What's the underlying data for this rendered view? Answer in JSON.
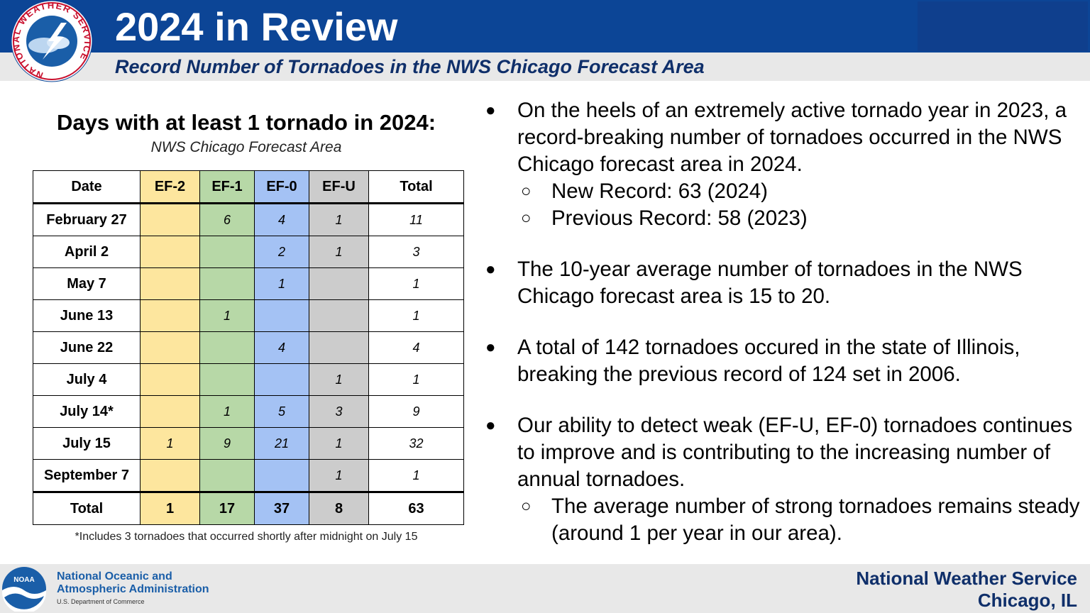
{
  "header": {
    "title": "2024 in Review",
    "subtitle": "Record Number of Tornadoes in the NWS Chicago Forecast Area",
    "logo_ring_text": "NATIONAL WEATHER SERVICE"
  },
  "table_section": {
    "heading": "Days with at least 1 tornado in 2024:",
    "subheading": "NWS Chicago Forecast Area",
    "columns": [
      "Date",
      "EF-2",
      "EF-1",
      "EF-0",
      "EF-U",
      "Total"
    ],
    "rows": [
      {
        "date": "February 27",
        "ef2": "",
        "ef1": "6",
        "ef0": "4",
        "efu": "1",
        "total": "11"
      },
      {
        "date": "April 2",
        "ef2": "",
        "ef1": "",
        "ef0": "2",
        "efu": "1",
        "total": "3"
      },
      {
        "date": "May 7",
        "ef2": "",
        "ef1": "",
        "ef0": "1",
        "efu": "",
        "total": "1"
      },
      {
        "date": "June 13",
        "ef2": "",
        "ef1": "1",
        "ef0": "",
        "efu": "",
        "total": "1"
      },
      {
        "date": "June 22",
        "ef2": "",
        "ef1": "",
        "ef0": "4",
        "efu": "",
        "total": "4"
      },
      {
        "date": "July 4",
        "ef2": "",
        "ef1": "",
        "ef0": "",
        "efu": "1",
        "total": "1"
      },
      {
        "date": "July 14*",
        "ef2": "",
        "ef1": "1",
        "ef0": "5",
        "efu": "3",
        "total": "9"
      },
      {
        "date": "July 15",
        "ef2": "1",
        "ef1": "9",
        "ef0": "21",
        "efu": "1",
        "total": "32"
      },
      {
        "date": "September 7",
        "ef2": "",
        "ef1": "",
        "ef0": "",
        "efu": "1",
        "total": "1"
      }
    ],
    "totals": {
      "label": "Total",
      "ef2": "1",
      "ef1": "17",
      "ef0": "37",
      "efu": "8",
      "total": "63"
    },
    "footnote": "*Includes 3 tornadoes that occurred shortly after midnight on July 15"
  },
  "bullets": {
    "b1": "On the heels of an extremely active tornado year in 2023, a record-breaking number of tornadoes occurred in the NWS Chicago forecast area in 2024.",
    "b1_sub1": "New Record: 63 (2024)",
    "b1_sub2": "Previous Record: 58 (2023)",
    "b2": "The 10-year average number of tornadoes in the NWS Chicago forecast area is 15 to 20.",
    "b3": "A total of 142 tornadoes occured in the state of Illinois, breaking the previous record of 124 set in 2006.",
    "b4": "Our ability to detect weak (EF-U, EF-0) tornadoes continues to improve and is contributing to the increasing number of annual tornadoes.",
    "b4_sub1": "The average number of strong tornadoes remains steady (around 1 per year in our area)."
  },
  "footer": {
    "noaa_badge": "NOAA",
    "noaa_line1": "National Oceanic and",
    "noaa_line2": "Atmospheric Administration",
    "noaa_dept": "U.S. Department of Commerce",
    "nws_line1": "National Weather Service",
    "nws_line2": "Chicago, IL"
  },
  "markers": {
    "bullet": "●",
    "sub_bullet": "○"
  },
  "colors": {
    "header_blue": "#0c4596",
    "ef2": "#fde69e",
    "ef1": "#b7d8a7",
    "ef0": "#a4c2f4",
    "efu": "#cccccc",
    "footer_text": "#0f2f6a"
  }
}
